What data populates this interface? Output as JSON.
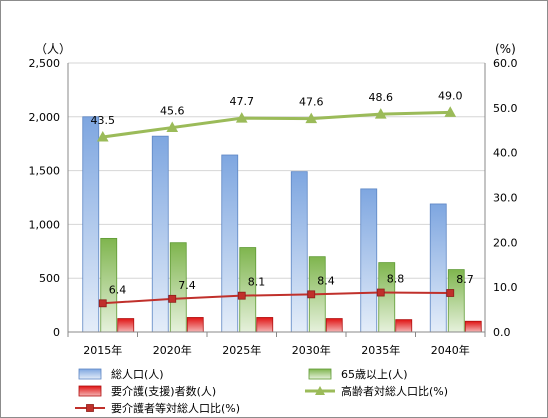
{
  "chart_data": {
    "type": "bar-line-combo",
    "categories": [
      "2015年",
      "2020年",
      "2025年",
      "2030年",
      "2035年",
      "2040年"
    ],
    "left_axis": {
      "unit_label": "（人）",
      "range": [
        0,
        2500
      ],
      "ticks": [
        "0",
        "500",
        "1,000",
        "1,500",
        "2,000",
        "2,500"
      ]
    },
    "right_axis": {
      "unit_label": "(%)",
      "range": [
        0,
        60
      ],
      "ticks": [
        "0.0",
        "10.0",
        "20.0",
        "30.0",
        "40.0",
        "50.0",
        "60.0"
      ]
    },
    "grid": true,
    "legend_position": "bottom",
    "bar_series": [
      {
        "name": "総人口(人)",
        "axis": "left",
        "color": "#8fb2e6",
        "values": [
          2000,
          1820,
          1645,
          1490,
          1330,
          1190
        ]
      },
      {
        "name": "65歳以上(人)",
        "axis": "left",
        "color": "#8cc063",
        "values": [
          870,
          830,
          785,
          700,
          645,
          580
        ]
      },
      {
        "name": "要介護(支援)者数(人)",
        "axis": "left",
        "color": "#e31b1b",
        "values": [
          125,
          135,
          135,
          125,
          115,
          100
        ]
      }
    ],
    "line_series": [
      {
        "name": "高齢者対総人口比(%)",
        "axis": "right",
        "color": "#9bbb59",
        "marker": "triangle",
        "values": [
          43.5,
          45.6,
          47.7,
          47.6,
          48.6,
          49.0
        ],
        "labels": [
          "43.5",
          "45.6",
          "47.7",
          "47.6",
          "48.6",
          "49.0"
        ]
      },
      {
        "name": "要介護者等対総人口比(%)",
        "axis": "right",
        "color": "#c0302b",
        "marker": "square",
        "values": [
          6.4,
          7.4,
          8.1,
          8.4,
          8.8,
          8.7
        ],
        "labels": [
          "6.4",
          "7.4",
          "8.1",
          "8.4",
          "8.8",
          "8.7"
        ]
      }
    ]
  }
}
